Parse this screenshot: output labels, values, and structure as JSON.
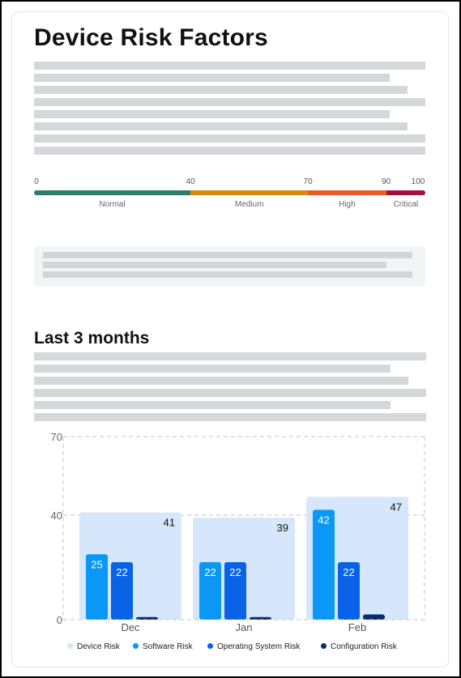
{
  "header": {
    "title": "Device Risk Factors"
  },
  "risk_scale": {
    "ticks": [
      "0",
      "40",
      "70",
      "90",
      "100"
    ],
    "tick_values": [
      0,
      40,
      70,
      90,
      100
    ],
    "bands": [
      {
        "label": "Normal",
        "from": 0,
        "to": 40,
        "color": "#2e7d6b"
      },
      {
        "label": "Medium",
        "from": 40,
        "to": 70,
        "color": "#d88a0e"
      },
      {
        "label": "High",
        "from": 70,
        "to": 90,
        "color": "#e85a2a"
      },
      {
        "label": "Critical",
        "from": 90,
        "to": 100,
        "color": "#a3123b"
      }
    ]
  },
  "section": {
    "title": "Last 3 months"
  },
  "chart_data": {
    "type": "bar",
    "categories": [
      "Dec",
      "Jan",
      "Feb"
    ],
    "ylim": [
      0,
      70
    ],
    "yticks": [
      0,
      40,
      70
    ],
    "grid": true,
    "legend_position": "bottom",
    "series": [
      {
        "name": "Device Risk",
        "values": [
          41,
          39,
          47
        ],
        "color": "#d6e7fb"
      },
      {
        "name": "Software Risk",
        "values": [
          25,
          22,
          42
        ],
        "color": "#0a97f5"
      },
      {
        "name": "Operating System Risk",
        "values": [
          22,
          22,
          22
        ],
        "color": "#0a63e6"
      },
      {
        "name": "Configuration Risk",
        "values": [
          1,
          1,
          2
        ],
        "color": "#0a2c6e"
      }
    ],
    "data_labels": {
      "Device Risk": [
        "41",
        "39",
        "47"
      ],
      "Software Risk": [
        "25",
        "22",
        "42"
      ],
      "Operating System Risk": [
        "22",
        "22",
        "22"
      ]
    }
  }
}
